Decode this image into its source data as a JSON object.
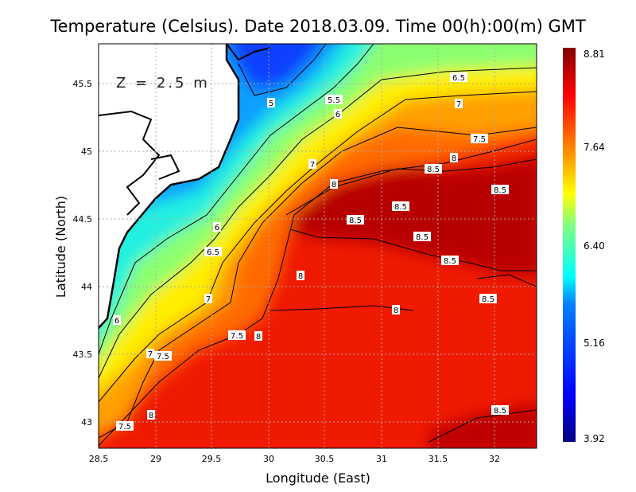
{
  "title": "Temperature (Celsius). Date 2018.03.09. Time 00(h):00(m) GMT",
  "depth_label": "Z = 2.5 m",
  "x_axis": {
    "label": "Longitude (East)",
    "ticks": [
      "28.5",
      "29",
      "29.5",
      "30",
      "30.5",
      "31",
      "31.5",
      "32"
    ]
  },
  "y_axis": {
    "label": "Latitude (North)",
    "ticks": [
      "45.5",
      "45",
      "44.5",
      "44",
      "43.5",
      "43"
    ]
  },
  "colorbar": {
    "labels": [
      "8.81",
      "7.64",
      "6.40",
      "5.16",
      "3.92"
    ],
    "min": 3.92,
    "max": 8.81,
    "colors": [
      "#800000",
      "#ff0000",
      "#ff8000",
      "#ffff00",
      "#80ff80",
      "#00ffff",
      "#0080ff",
      "#0000ff",
      "#000080"
    ]
  },
  "contour_labels": [
    "6.5",
    "5",
    "5.5",
    "6",
    "7",
    "7.5",
    "8",
    "8.5",
    "7",
    "8",
    "8.5",
    "8.5",
    "8.5",
    "8.5",
    "6",
    "6.5",
    "8.5",
    "8",
    "7",
    "8.5",
    "8",
    "6",
    "7.5",
    "8",
    "7",
    "7.5",
    "8",
    "7.5",
    "8.5"
  ]
}
